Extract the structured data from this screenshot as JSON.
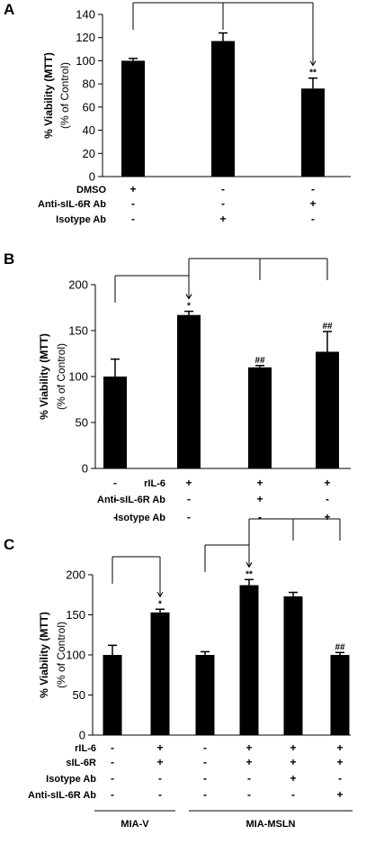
{
  "colors": {
    "bar": "#000000",
    "axis": "#000000"
  },
  "chart_data": [
    {
      "type": "bar",
      "panel": "A",
      "ylabel": "% Viability (MTT)",
      "ylabel_sub": "(% of Control)",
      "ylim": [
        0,
        140
      ],
      "yticks": [
        0,
        20,
        40,
        60,
        80,
        100,
        120,
        140
      ],
      "grid": false,
      "values": [
        100,
        117,
        76
      ],
      "errors": [
        2,
        7,
        9
      ],
      "significance": [
        "",
        "",
        "**"
      ],
      "condition_labels": [
        "DMSO",
        "Anti-sIL-6R Ab",
        "Isotype Ab"
      ],
      "conditions": [
        [
          "+",
          "-",
          "-"
        ],
        [
          "-",
          "-",
          "+"
        ],
        [
          "-",
          "+",
          "-"
        ]
      ]
    },
    {
      "type": "bar",
      "panel": "B",
      "ylabel": "% Viability (MTT)",
      "ylabel_sub": "(% of Control)",
      "ylim": [
        0,
        200
      ],
      "yticks": [
        0,
        50,
        100,
        150,
        200
      ],
      "grid": false,
      "values": [
        100,
        167,
        110,
        127
      ],
      "errors": [
        19,
        4,
        2,
        22
      ],
      "significance": [
        "",
        "*",
        "##",
        "##"
      ],
      "condition_labels": [
        "rIL-6",
        "Anti-sIL-6R Ab",
        "Isotype Ab"
      ],
      "conditions": [
        [
          "-",
          "+",
          "+",
          "+"
        ],
        [
          "-",
          "-",
          "+",
          "-"
        ],
        [
          "-",
          "-",
          "-",
          "+"
        ]
      ]
    },
    {
      "type": "bar",
      "panel": "C",
      "ylabel": "% Viability (MTT)",
      "ylabel_sub": "(% of Control)",
      "ylim": [
        0,
        200
      ],
      "yticks": [
        0,
        50,
        100,
        150,
        200
      ],
      "grid": false,
      "values": [
        100,
        153,
        100,
        187,
        173,
        100
      ],
      "errors": [
        12,
        4,
        4,
        7,
        5,
        3
      ],
      "significance": [
        "",
        "*",
        "",
        "**",
        "",
        "##"
      ],
      "condition_labels": [
        "rIL-6",
        "sIL-6R",
        "Isotype Ab",
        "Anti-sIL-6R Ab"
      ],
      "conditions": [
        [
          "-",
          "+",
          "-",
          "+",
          "+",
          "+"
        ],
        [
          "-",
          "+",
          "-",
          "+",
          "+",
          "+"
        ],
        [
          "-",
          "-",
          "-",
          "-",
          "+",
          "-"
        ],
        [
          "-",
          "-",
          "-",
          "-",
          "-",
          "+"
        ]
      ],
      "groups": [
        "MIA-V",
        "MIA-MSLN"
      ]
    }
  ]
}
